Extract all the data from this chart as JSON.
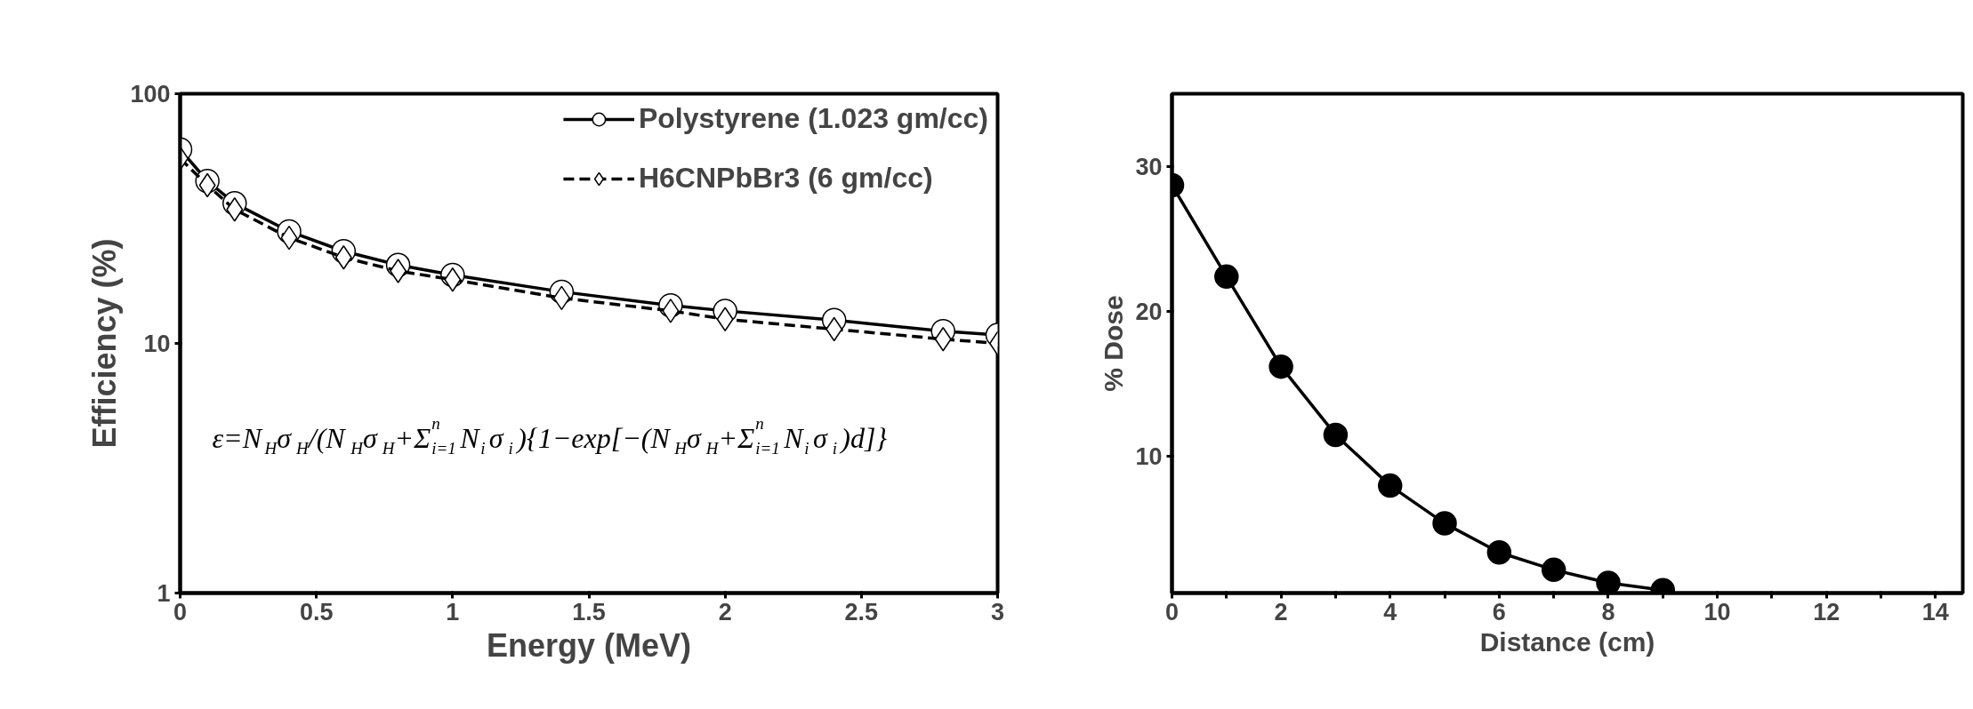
{
  "chart_data": [
    {
      "type": "line",
      "xlabel": "Energy (MeV)",
      "ylabel": "Efficiency (%)",
      "log": "y",
      "legend": "top right",
      "x": [
        0,
        0.1,
        0.2,
        0.4,
        0.6,
        0.8,
        1,
        1.4,
        1.8,
        2,
        2.4,
        2.8,
        3
      ],
      "xlim": [
        0,
        3
      ],
      "xticks": [
        0,
        0.5,
        1,
        1.5,
        2,
        2.5,
        3
      ],
      "ylim": [
        1,
        100
      ],
      "yticks": [
        1,
        10,
        100
      ],
      "series": [
        {
          "name": "Polystyrene (1.023 gm/cc)",
          "color": "#000000",
          "marker": "circle",
          "line_style": "solid",
          "values": [
            59.8,
            44.7,
            36.4,
            28.1,
            23.4,
            20.6,
            18.8,
            16.1,
            14.2,
            13.5,
            12.4,
            11.2,
            10.8
          ]
        },
        {
          "name": "H6CNPbBr3 (6 gm/cc)",
          "color": "#000000",
          "marker": "diamond",
          "line_style": "dashed",
          "values": [
            55.1,
            43.0,
            34.4,
            26.5,
            22.1,
            19.5,
            18.0,
            15.2,
            13.5,
            12.5,
            11.4,
            10.4,
            10.0
          ]
        }
      ],
      "annotations": [
        "ε=N$_{H}$σ$_{H}$/(N$_{H}$σ$_{H}$+Σ$^{n}$$_{i=1}$N$_{i}$σ$_{i}$){1−exp[−(N$_{H}$σ$_{H}$+Σ$^{n}$$_{i=1}$N$_{i}$σ$_{i}$)d]}"
      ]
    },
    {
      "type": "line",
      "xlabel": "Distance (cm)",
      "ylabel": "% Dose",
      "marker": "circle",
      "line_style": "solid",
      "x": [
        0,
        1,
        2,
        3,
        4,
        5,
        6,
        7,
        8,
        9
      ],
      "xlim": [
        0,
        14.5
      ],
      "xticks": [
        0,
        {
          "value": 1,
          "label": null
        },
        2,
        {
          "value": 3,
          "label": null
        },
        4,
        {
          "value": 5,
          "label": null
        },
        6,
        {
          "value": 7,
          "label": null
        },
        8,
        {
          "value": 9,
          "label": null
        },
        10,
        {
          "value": 11,
          "label": null
        },
        12,
        {
          "value": 13,
          "label": null
        },
        14
      ],
      "ylim": [
        0.6,
        35
      ],
      "yticks": [
        10,
        20,
        30
      ],
      "series": [
        {
          "color": "#000000",
          "values": [
            28.7,
            22.4,
            16.2,
            11.5,
            8.0,
            5.4,
            3.4,
            2.2,
            1.3,
            0.8
          ]
        }
      ]
    }
  ]
}
